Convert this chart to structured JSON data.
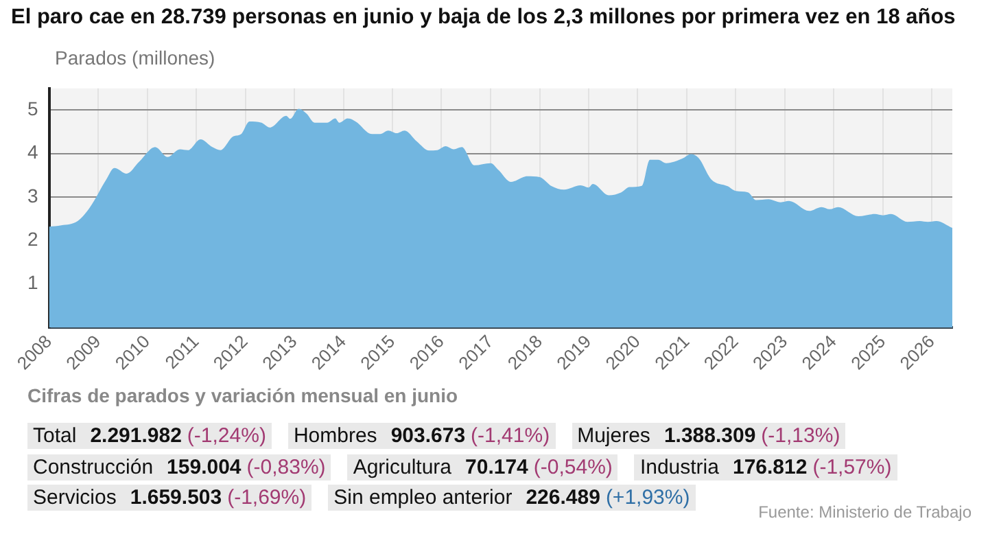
{
  "chart_data": [
    {
      "type": "area",
      "title": "El paro cae en 28.739 personas en junio y baja de los 2,3 millones por primera vez en 18 años",
      "ylabel": "Parados (millones)",
      "x": [
        "2008-01",
        "2008-04",
        "2008-08",
        "2008-11",
        "2009-03",
        "2009-05",
        "2009-08",
        "2009-11",
        "2010-03",
        "2010-06",
        "2010-09",
        "2010-11",
        "2011-02",
        "2011-05",
        "2011-07",
        "2011-10",
        "2011-12",
        "2012-02",
        "2012-05",
        "2012-07",
        "2012-11",
        "2012-12",
        "2013-02",
        "2013-04",
        "2013-06",
        "2013-09",
        "2013-11",
        "2013-12",
        "2014-02",
        "2014-04",
        "2014-08",
        "2014-10",
        "2014-12",
        "2015-02",
        "2015-04",
        "2015-07",
        "2015-10",
        "2015-12",
        "2016-02",
        "2016-04",
        "2016-06",
        "2016-09",
        "2017-01",
        "2017-03",
        "2017-06",
        "2017-10",
        "2018-01",
        "2018-04",
        "2018-07",
        "2018-11",
        "2019-01",
        "2019-02",
        "2019-06",
        "2019-09",
        "2019-11",
        "2020-02",
        "2020-04",
        "2020-06",
        "2020-08",
        "2020-12",
        "2021-02",
        "2021-04",
        "2021-07",
        "2021-11",
        "2022-01",
        "2022-04",
        "2022-06",
        "2022-09",
        "2022-12",
        "2023-02",
        "2023-07",
        "2023-10",
        "2023-12",
        "2024-02",
        "2024-07",
        "2024-11",
        "2025-01",
        "2025-03",
        "2025-07",
        "2025-10",
        "2025-12",
        "2026-02",
        "2026-06"
      ],
      "series": [
        {
          "color": "#72b6e0",
          "values": [
            2.32,
            2.35,
            2.45,
            2.77,
            3.4,
            3.67,
            3.54,
            3.81,
            4.15,
            3.92,
            4.1,
            4.08,
            4.33,
            4.15,
            4.08,
            4.39,
            4.45,
            4.74,
            4.71,
            4.6,
            4.87,
            4.8,
            5.03,
            4.92,
            4.71,
            4.71,
            4.81,
            4.71,
            4.81,
            4.74,
            4.45,
            4.45,
            4.53,
            4.47,
            4.53,
            4.28,
            4.07,
            4.08,
            4.17,
            4.1,
            4.15,
            3.73,
            3.78,
            3.62,
            3.35,
            3.48,
            3.46,
            3.25,
            3.17,
            3.27,
            3.22,
            3.3,
            3.04,
            3.11,
            3.23,
            3.26,
            3.86,
            3.86,
            3.78,
            3.89,
            3.99,
            3.89,
            3.41,
            3.25,
            3.14,
            3.11,
            2.93,
            2.95,
            2.88,
            2.91,
            2.68,
            2.77,
            2.72,
            2.77,
            2.56,
            2.61,
            2.58,
            2.61,
            2.43,
            2.45,
            2.43,
            2.45,
            2.29
          ]
        }
      ],
      "xlim": [
        "2008-01",
        "2026-06"
      ],
      "xticks": [
        "2008",
        "2009",
        "2010",
        "2011",
        "2012",
        "2013",
        "2014",
        "2015",
        "2016",
        "2017",
        "2018",
        "2019",
        "2020",
        "2021",
        "2022",
        "2023",
        "2024",
        "2025",
        "2026"
      ],
      "ylim": [
        0,
        5.5
      ],
      "yticks": [
        1,
        2,
        3,
        4,
        5
      ],
      "grid": true
    },
    {
      "type": "other",
      "title": "Cifras de parados y variación mensual en junio",
      "annotations": [
        "Total",
        "2.291.982",
        "(-1,24%)",
        "Hombres",
        "903.673",
        "(-1,41%)",
        "Mujeres",
        "1.388.309",
        "(-1,13%)",
        "Construcción",
        "159.004",
        "(-0,83%)",
        "Agricultura",
        "70.174",
        "(-0,54%)",
        "Industria",
        "176.812",
        "(-1,57%)",
        "Servicios",
        "1.659.503",
        "(-1,69%)",
        "Sin empleo anterior",
        "226.489",
        "(+1,93%)",
        "Fuente: Ministerio de Trabajo"
      ]
    }
  ]
}
